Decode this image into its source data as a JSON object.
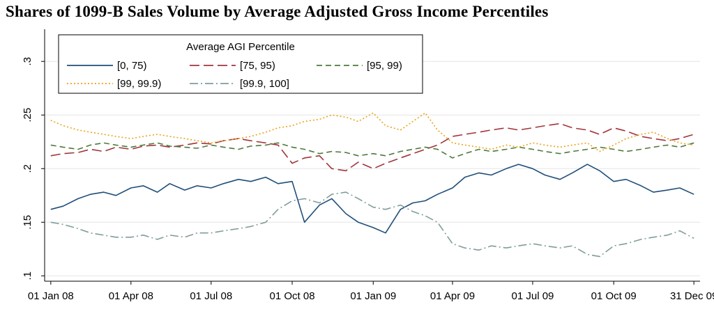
{
  "title": "Shares of 1099-B Sales Volume by Average Adjusted Gross Income Percentiles",
  "chart_data": {
    "type": "line",
    "title": "Shares of 1099-B Sales Volume by Average Adjusted Gross Income Percentiles",
    "xlabel": "",
    "ylabel": "",
    "ylim": [
      0.095,
      0.33
    ],
    "xlim": [
      "2007-12-25",
      "2010-01-07"
    ],
    "y_ticks": [
      0.1,
      0.15,
      0.2,
      0.25,
      0.3
    ],
    "y_tick_labels": [
      ".1",
      ".15",
      ".2",
      ".25",
      ".3"
    ],
    "x_ticks": [
      "2008-01-01",
      "2008-04-01",
      "2008-07-01",
      "2008-10-01",
      "2009-01-01",
      "2009-04-01",
      "2009-07-01",
      "2009-10-01",
      "2009-12-31"
    ],
    "x_tick_labels": [
      "01 Jan 08",
      "01 Apr 08",
      "01 Jul 08",
      "01 Oct 08",
      "01 Jan 09",
      "01 Apr 09",
      "01 Jul 09",
      "01 Oct 09",
      "31 Dec 09"
    ],
    "grid": true,
    "legend": {
      "title": "Average AGI Percentile",
      "position": "top-left"
    },
    "series": [
      {
        "name": "[0, 75)",
        "color": "#1f4e79",
        "dash": "solid",
        "x": [
          "2008-01-01",
          "2008-01-15",
          "2008-02-01",
          "2008-02-15",
          "2008-03-01",
          "2008-03-15",
          "2008-04-01",
          "2008-04-15",
          "2008-05-01",
          "2008-05-15",
          "2008-06-01",
          "2008-06-15",
          "2008-07-01",
          "2008-07-15",
          "2008-08-01",
          "2008-08-15",
          "2008-09-01",
          "2008-09-15",
          "2008-10-01",
          "2008-10-15",
          "2008-11-01",
          "2008-11-15",
          "2008-12-01",
          "2008-12-15",
          "2009-01-01",
          "2009-01-15",
          "2009-02-01",
          "2009-02-15",
          "2009-03-01",
          "2009-03-15",
          "2009-04-01",
          "2009-04-15",
          "2009-05-01",
          "2009-05-15",
          "2009-06-01",
          "2009-06-15",
          "2009-07-01",
          "2009-07-15",
          "2009-08-01",
          "2009-08-15",
          "2009-09-01",
          "2009-09-15",
          "2009-10-01",
          "2009-10-15",
          "2009-11-01",
          "2009-11-15",
          "2009-12-01",
          "2009-12-15",
          "2009-12-31"
        ],
        "values": [
          0.162,
          0.165,
          0.172,
          0.176,
          0.178,
          0.175,
          0.182,
          0.184,
          0.178,
          0.186,
          0.18,
          0.184,
          0.182,
          0.186,
          0.19,
          0.188,
          0.192,
          0.186,
          0.188,
          0.15,
          0.166,
          0.172,
          0.158,
          0.15,
          0.145,
          0.14,
          0.162,
          0.168,
          0.17,
          0.176,
          0.182,
          0.192,
          0.196,
          0.194,
          0.2,
          0.204,
          0.2,
          0.194,
          0.19,
          0.196,
          0.204,
          0.198,
          0.188,
          0.19,
          0.184,
          0.178,
          0.18,
          0.182,
          0.176
        ]
      },
      {
        "name": "[75, 95)",
        "color": "#a1343c",
        "dash": "long",
        "x": [
          "2008-01-01",
          "2008-01-15",
          "2008-02-01",
          "2008-02-15",
          "2008-03-01",
          "2008-03-15",
          "2008-04-01",
          "2008-04-15",
          "2008-05-01",
          "2008-05-15",
          "2008-06-01",
          "2008-06-15",
          "2008-07-01",
          "2008-07-15",
          "2008-08-01",
          "2008-08-15",
          "2008-09-01",
          "2008-09-15",
          "2008-10-01",
          "2008-10-15",
          "2008-11-01",
          "2008-11-15",
          "2008-12-01",
          "2008-12-15",
          "2009-01-01",
          "2009-01-15",
          "2009-02-01",
          "2009-02-15",
          "2009-03-01",
          "2009-03-15",
          "2009-04-01",
          "2009-04-15",
          "2009-05-01",
          "2009-05-15",
          "2009-06-01",
          "2009-06-15",
          "2009-07-01",
          "2009-07-15",
          "2009-08-01",
          "2009-08-15",
          "2009-09-01",
          "2009-09-15",
          "2009-10-01",
          "2009-10-15",
          "2009-11-01",
          "2009-11-15",
          "2009-12-01",
          "2009-12-15",
          "2009-12-31"
        ],
        "values": [
          0.212,
          0.214,
          0.215,
          0.218,
          0.216,
          0.22,
          0.218,
          0.221,
          0.222,
          0.22,
          0.222,
          0.224,
          0.223,
          0.226,
          0.228,
          0.226,
          0.224,
          0.222,
          0.205,
          0.21,
          0.212,
          0.2,
          0.198,
          0.206,
          0.2,
          0.205,
          0.21,
          0.214,
          0.218,
          0.222,
          0.23,
          0.232,
          0.234,
          0.236,
          0.238,
          0.236,
          0.238,
          0.24,
          0.242,
          0.238,
          0.236,
          0.232,
          0.238,
          0.235,
          0.23,
          0.228,
          0.226,
          0.228,
          0.232
        ]
      },
      {
        "name": "[95, 99)",
        "color": "#4e7a3a",
        "dash": "medium",
        "x": [
          "2008-01-01",
          "2008-01-15",
          "2008-02-01",
          "2008-02-15",
          "2008-03-01",
          "2008-03-15",
          "2008-04-01",
          "2008-04-15",
          "2008-05-01",
          "2008-05-15",
          "2008-06-01",
          "2008-06-15",
          "2008-07-01",
          "2008-07-15",
          "2008-08-01",
          "2008-08-15",
          "2008-09-01",
          "2008-09-15",
          "2008-10-01",
          "2008-10-15",
          "2008-11-01",
          "2008-11-15",
          "2008-12-01",
          "2008-12-15",
          "2009-01-01",
          "2009-01-15",
          "2009-02-01",
          "2009-02-15",
          "2009-03-01",
          "2009-03-15",
          "2009-04-01",
          "2009-04-15",
          "2009-05-01",
          "2009-05-15",
          "2009-06-01",
          "2009-06-15",
          "2009-07-01",
          "2009-07-15",
          "2009-08-01",
          "2009-08-15",
          "2009-09-01",
          "2009-09-15",
          "2009-10-01",
          "2009-10-15",
          "2009-11-01",
          "2009-11-15",
          "2009-12-01",
          "2009-12-15",
          "2009-12-31"
        ],
        "values": [
          0.222,
          0.22,
          0.218,
          0.222,
          0.224,
          0.222,
          0.22,
          0.222,
          0.224,
          0.221,
          0.22,
          0.219,
          0.222,
          0.22,
          0.218,
          0.221,
          0.222,
          0.224,
          0.22,
          0.218,
          0.214,
          0.216,
          0.215,
          0.212,
          0.214,
          0.212,
          0.216,
          0.218,
          0.22,
          0.218,
          0.21,
          0.214,
          0.218,
          0.216,
          0.218,
          0.22,
          0.218,
          0.216,
          0.214,
          0.216,
          0.218,
          0.22,
          0.218,
          0.216,
          0.218,
          0.22,
          0.222,
          0.22,
          0.224
        ]
      },
      {
        "name": "[99, 99.9)",
        "color": "#e8a317",
        "dash": "dotted",
        "x": [
          "2008-01-01",
          "2008-01-15",
          "2008-02-01",
          "2008-02-15",
          "2008-03-01",
          "2008-03-15",
          "2008-04-01",
          "2008-04-15",
          "2008-05-01",
          "2008-05-15",
          "2008-06-01",
          "2008-06-15",
          "2008-07-01",
          "2008-07-15",
          "2008-08-01",
          "2008-08-15",
          "2008-09-01",
          "2008-09-15",
          "2008-10-01",
          "2008-10-15",
          "2008-11-01",
          "2008-11-15",
          "2008-12-01",
          "2008-12-15",
          "2009-01-01",
          "2009-01-15",
          "2009-02-01",
          "2009-02-15",
          "2009-03-01",
          "2009-03-15",
          "2009-04-01",
          "2009-04-15",
          "2009-05-01",
          "2009-05-15",
          "2009-06-01",
          "2009-06-15",
          "2009-07-01",
          "2009-07-15",
          "2009-08-01",
          "2009-08-15",
          "2009-09-01",
          "2009-09-15",
          "2009-10-01",
          "2009-10-15",
          "2009-11-01",
          "2009-11-15",
          "2009-12-01",
          "2009-12-15",
          "2009-12-31"
        ],
        "values": [
          0.245,
          0.24,
          0.236,
          0.234,
          0.232,
          0.23,
          0.228,
          0.23,
          0.232,
          0.23,
          0.228,
          0.226,
          0.224,
          0.226,
          0.228,
          0.23,
          0.234,
          0.238,
          0.24,
          0.244,
          0.246,
          0.25,
          0.248,
          0.244,
          0.252,
          0.24,
          0.236,
          0.244,
          0.252,
          0.236,
          0.224,
          0.222,
          0.22,
          0.218,
          0.222,
          0.22,
          0.224,
          0.222,
          0.22,
          0.222,
          0.224,
          0.216,
          0.222,
          0.228,
          0.232,
          0.234,
          0.228,
          0.224,
          0.222
        ]
      },
      {
        "name": "[99.9, 100]",
        "color": "#809c9c",
        "dash": "dashdot",
        "x": [
          "2008-01-01",
          "2008-01-15",
          "2008-02-01",
          "2008-02-15",
          "2008-03-01",
          "2008-03-15",
          "2008-04-01",
          "2008-04-15",
          "2008-05-01",
          "2008-05-15",
          "2008-06-01",
          "2008-06-15",
          "2008-07-01",
          "2008-07-15",
          "2008-08-01",
          "2008-08-15",
          "2008-09-01",
          "2008-09-15",
          "2008-10-01",
          "2008-10-15",
          "2008-11-01",
          "2008-11-15",
          "2008-12-01",
          "2008-12-15",
          "2009-01-01",
          "2009-01-15",
          "2009-02-01",
          "2009-02-15",
          "2009-03-01",
          "2009-03-15",
          "2009-04-01",
          "2009-04-15",
          "2009-05-01",
          "2009-05-15",
          "2009-06-01",
          "2009-06-15",
          "2009-07-01",
          "2009-07-15",
          "2009-08-01",
          "2009-08-15",
          "2009-09-01",
          "2009-09-15",
          "2009-10-01",
          "2009-10-15",
          "2009-11-01",
          "2009-11-15",
          "2009-12-01",
          "2009-12-15",
          "2009-12-31"
        ],
        "values": [
          0.15,
          0.148,
          0.144,
          0.14,
          0.138,
          0.136,
          0.136,
          0.138,
          0.134,
          0.138,
          0.136,
          0.14,
          0.14,
          0.142,
          0.144,
          0.146,
          0.15,
          0.162,
          0.17,
          0.172,
          0.168,
          0.176,
          0.178,
          0.172,
          0.164,
          0.162,
          0.166,
          0.16,
          0.156,
          0.15,
          0.13,
          0.126,
          0.124,
          0.128,
          0.126,
          0.128,
          0.13,
          0.128,
          0.126,
          0.128,
          0.12,
          0.118,
          0.128,
          0.13,
          0.134,
          0.136,
          0.138,
          0.142,
          0.135
        ]
      }
    ]
  }
}
